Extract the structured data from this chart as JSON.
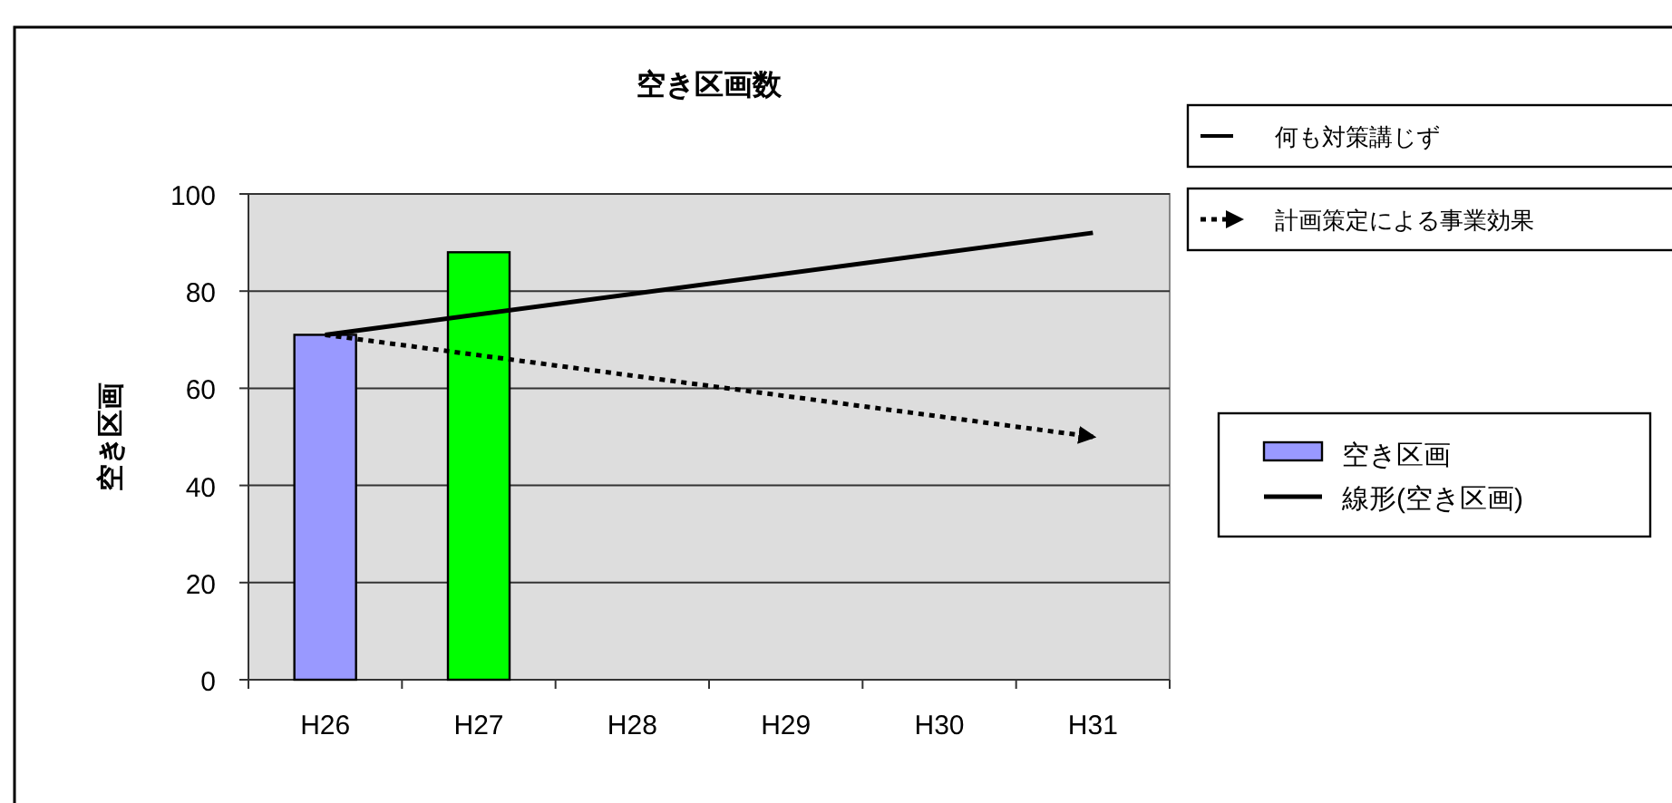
{
  "chart_data": {
    "type": "bar",
    "title": "空き区画数",
    "ylabel": "空き区画",
    "categories": [
      "H26",
      "H27",
      "H28",
      "H29",
      "H30",
      "H31"
    ],
    "ylim": [
      0,
      100
    ],
    "yticks": [
      0,
      20,
      40,
      60,
      80,
      100
    ],
    "grid": "y",
    "legend": "right",
    "marker": "none",
    "annotations": [
      "何も対策講じず"
    ],
    "series": [
      {
        "name": "空き区画",
        "colors": [
          "#9999ff",
          "#00ff00"
        ],
        "x": [
          "H26",
          "H27"
        ],
        "values": [
          71,
          88
        ]
      },
      {
        "type": "line",
        "name": "線形(空き区画)",
        "color": "#000000",
        "x": [
          "H26",
          "H31"
        ],
        "values": [
          71,
          92
        ],
        "line_style": "solid"
      },
      {
        "type": "line",
        "name": "計画策定による事業効果",
        "color": "#000000",
        "x": [
          "H26",
          "H31"
        ],
        "values": [
          71,
          50
        ],
        "line_style": "dotted"
      }
    ]
  }
}
